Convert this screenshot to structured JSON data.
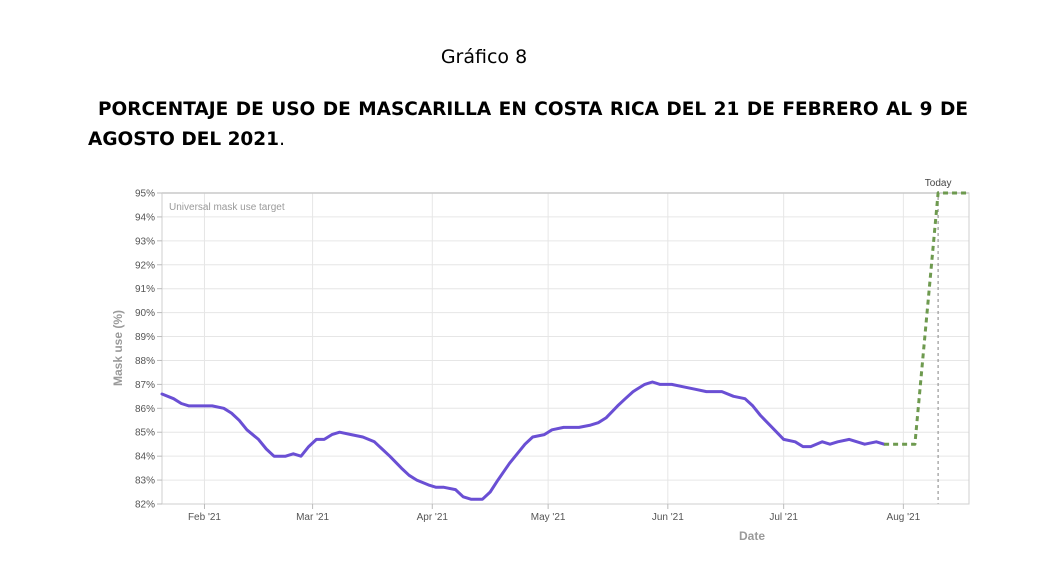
{
  "document": {
    "figure_label": "Gráfico 8",
    "title": "PORCENTAJE DE USO DE MASCARILLA EN COSTA RICA DEL 21 DE FEBRERO AL 9 DE AGOSTO DEL 2021",
    "title_end": "."
  },
  "chart_data": {
    "type": "line",
    "xlabel": "Date",
    "ylabel": "Mask use (%)",
    "ylim": [
      82,
      95
    ],
    "y_ticks": [
      "95%",
      "94%",
      "93%",
      "92%",
      "91%",
      "90%",
      "89%",
      "88%",
      "87%",
      "86%",
      "85%",
      "84%",
      "83%",
      "82%"
    ],
    "x_ticks": [
      {
        "label": "Feb '21",
        "date": "2021-02-01"
      },
      {
        "label": "Mar '21",
        "date": "2021-03-01"
      },
      {
        "label": "Apr '21",
        "date": "2021-04-01"
      },
      {
        "label": "May '21",
        "date": "2021-05-01"
      },
      {
        "label": "Jun '21",
        "date": "2021-06-01"
      },
      {
        "label": "Jul '21",
        "date": "2021-07-01"
      },
      {
        "label": "Aug '21",
        "date": "2021-08-01"
      }
    ],
    "xlim": [
      "2021-01-21",
      "2021-08-18"
    ],
    "grid": true,
    "annotations": {
      "target_label": "Universal mask use target",
      "target_value": 95,
      "today_label": "Today",
      "today_date": "2021-08-10"
    },
    "colors": {
      "observed": "#6a4fd4",
      "projected": "#6e9a4f",
      "grid": "#e6e6e6",
      "today_line": "#999999"
    },
    "series": [
      {
        "style": "solid",
        "points": [
          [
            "2021-01-21",
            86.6
          ],
          [
            "2021-01-24",
            86.4
          ],
          [
            "2021-01-26",
            86.2
          ],
          [
            "2021-01-28",
            86.1
          ],
          [
            "2021-01-31",
            86.1
          ],
          [
            "2021-02-03",
            86.1
          ],
          [
            "2021-02-06",
            86.0
          ],
          [
            "2021-02-08",
            85.8
          ],
          [
            "2021-02-10",
            85.5
          ],
          [
            "2021-02-12",
            85.1
          ],
          [
            "2021-02-15",
            84.7
          ],
          [
            "2021-02-17",
            84.3
          ],
          [
            "2021-02-19",
            84.0
          ],
          [
            "2021-02-22",
            84.0
          ],
          [
            "2021-02-24",
            84.1
          ],
          [
            "2021-02-26",
            84.0
          ],
          [
            "2021-02-28",
            84.4
          ],
          [
            "2021-03-02",
            84.7
          ],
          [
            "2021-03-04",
            84.7
          ],
          [
            "2021-03-06",
            84.9
          ],
          [
            "2021-03-08",
            85.0
          ],
          [
            "2021-03-11",
            84.9
          ],
          [
            "2021-03-14",
            84.8
          ],
          [
            "2021-03-17",
            84.6
          ],
          [
            "2021-03-19",
            84.3
          ],
          [
            "2021-03-21",
            84.0
          ],
          [
            "2021-03-24",
            83.5
          ],
          [
            "2021-03-26",
            83.2
          ],
          [
            "2021-03-28",
            83.0
          ],
          [
            "2021-03-31",
            82.8
          ],
          [
            "2021-04-02",
            82.7
          ],
          [
            "2021-04-04",
            82.7
          ],
          [
            "2021-04-07",
            82.6
          ],
          [
            "2021-04-09",
            82.3
          ],
          [
            "2021-04-11",
            82.2
          ],
          [
            "2021-04-14",
            82.2
          ],
          [
            "2021-04-16",
            82.5
          ],
          [
            "2021-04-18",
            83.0
          ],
          [
            "2021-04-21",
            83.7
          ],
          [
            "2021-04-23",
            84.1
          ],
          [
            "2021-04-25",
            84.5
          ],
          [
            "2021-04-27",
            84.8
          ],
          [
            "2021-04-30",
            84.9
          ],
          [
            "2021-05-02",
            85.1
          ],
          [
            "2021-05-05",
            85.2
          ],
          [
            "2021-05-07",
            85.2
          ],
          [
            "2021-05-09",
            85.2
          ],
          [
            "2021-05-12",
            85.3
          ],
          [
            "2021-05-14",
            85.4
          ],
          [
            "2021-05-16",
            85.6
          ],
          [
            "2021-05-19",
            86.1
          ],
          [
            "2021-05-21",
            86.4
          ],
          [
            "2021-05-23",
            86.7
          ],
          [
            "2021-05-26",
            87.0
          ],
          [
            "2021-05-28",
            87.1
          ],
          [
            "2021-05-30",
            87.0
          ],
          [
            "2021-06-02",
            87.0
          ],
          [
            "2021-06-05",
            86.9
          ],
          [
            "2021-06-08",
            86.8
          ],
          [
            "2021-06-11",
            86.7
          ],
          [
            "2021-06-13",
            86.7
          ],
          [
            "2021-06-15",
            86.7
          ],
          [
            "2021-06-18",
            86.5
          ],
          [
            "2021-06-21",
            86.4
          ],
          [
            "2021-06-23",
            86.1
          ],
          [
            "2021-06-25",
            85.7
          ],
          [
            "2021-06-28",
            85.2
          ],
          [
            "2021-07-01",
            84.7
          ],
          [
            "2021-07-04",
            84.6
          ],
          [
            "2021-07-06",
            84.4
          ],
          [
            "2021-07-08",
            84.4
          ],
          [
            "2021-07-11",
            84.6
          ],
          [
            "2021-07-13",
            84.5
          ],
          [
            "2021-07-15",
            84.6
          ],
          [
            "2021-07-18",
            84.7
          ],
          [
            "2021-07-20",
            84.6
          ],
          [
            "2021-07-22",
            84.5
          ],
          [
            "2021-07-25",
            84.6
          ],
          [
            "2021-07-27",
            84.5
          ]
        ]
      },
      {
        "style": "dashed",
        "points": [
          [
            "2021-07-27",
            84.5
          ],
          [
            "2021-08-03",
            84.5
          ],
          [
            "2021-08-04",
            84.5
          ],
          [
            "2021-08-10",
            95.0
          ],
          [
            "2021-08-18",
            95.0
          ]
        ]
      }
    ]
  }
}
